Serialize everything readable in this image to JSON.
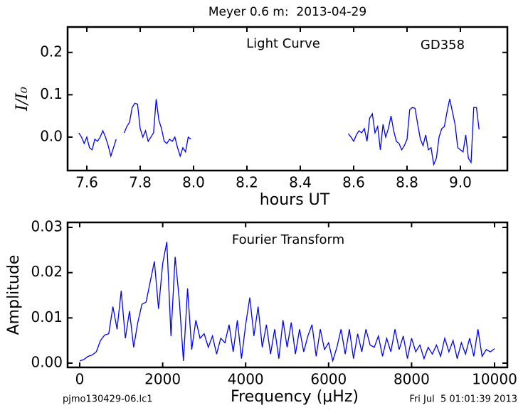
{
  "page": {
    "title": "Meyer 0.6 m:  2013-04-29",
    "footer_left": "pjmo130429-06.lc1",
    "footer_right": "Fri Jul  5 01:01:39 2013"
  },
  "chart_data": [
    {
      "type": "line",
      "xlabel": "hours UT",
      "ylabel": "I/I₀",
      "annotations": [
        "Light Curve",
        "GD358"
      ],
      "xlim": [
        7.528,
        9.176
      ],
      "ylim": [
        -0.079,
        0.26
      ],
      "xticks": [
        7.6,
        7.8,
        {
          "value": 8,
          "label": "8.0"
        },
        8.2,
        8.4,
        8.6,
        8.8,
        {
          "value": 9,
          "label": "9.0"
        }
      ],
      "yticks": [
        {
          "value": 0,
          "label": "0.0"
        },
        0.1,
        0.2
      ],
      "series": [
        {
          "color": "#0000ff",
          "x": [
            7.57,
            7.58,
            7.59,
            7.6,
            7.61,
            7.62,
            7.63,
            7.64,
            7.65,
            7.66,
            7.67,
            7.68,
            7.69,
            7.7,
            7.71,
            7.725,
            7.74,
            7.75,
            7.76,
            7.77,
            7.78,
            7.79,
            7.8,
            7.81,
            7.82,
            7.83,
            7.84,
            7.85,
            7.86,
            7.87,
            7.88,
            7.89,
            7.9,
            7.91,
            7.92,
            7.93,
            7.94,
            7.95,
            7.96,
            7.97,
            7.98,
            7.99,
            8.3,
            8.58,
            8.59,
            8.6,
            8.61,
            8.62,
            8.63,
            8.64,
            8.65,
            8.66,
            8.67,
            8.68,
            8.69,
            8.7,
            8.71,
            8.72,
            8.73,
            8.74,
            8.75,
            8.76,
            8.77,
            8.78,
            8.79,
            8.8,
            8.81,
            8.82,
            8.83,
            8.84,
            8.85,
            8.86,
            8.87,
            8.88,
            8.89,
            8.9,
            8.91,
            8.92,
            8.93,
            8.94,
            8.95,
            8.96,
            8.97,
            8.98,
            8.99,
            9.0,
            9.01,
            9.02,
            9.03,
            9.04,
            9.05,
            9.06,
            9.07
          ],
          "values": [
            0.01,
            0.0,
            -0.015,
            0.0,
            -0.025,
            -0.03,
            -0.005,
            -0.01,
            0.0,
            0.015,
            0.0,
            -0.02,
            -0.045,
            -0.025,
            -0.005,
            null,
            0.01,
            0.025,
            0.035,
            0.07,
            0.08,
            0.078,
            0.02,
            0.0,
            0.015,
            -0.01,
            0.0,
            0.01,
            0.09,
            0.04,
            0.02,
            -0.01,
            -0.015,
            -0.005,
            -0.01,
            0.0,
            -0.025,
            -0.045,
            -0.025,
            -0.035,
            0.0,
            -0.005,
            null,
            0.008,
            0.0,
            -0.01,
            0.005,
            0.015,
            0.01,
            0.02,
            -0.01,
            0.045,
            0.055,
            0.01,
            0.025,
            -0.03,
            0.03,
            0.0,
            0.02,
            0.05,
            0.015,
            -0.01,
            -0.015,
            -0.03,
            -0.02,
            -0.005,
            0.065,
            0.07,
            0.068,
            0.03,
            -0.005,
            -0.02,
            0.005,
            -0.03,
            -0.025,
            -0.065,
            -0.05,
            0.0,
            0.02,
            0.025,
            0.06,
            0.09,
            0.06,
            0.03,
            -0.025,
            -0.03,
            -0.035,
            0.005,
            -0.05,
            -0.06,
            0.07,
            0.07,
            0.018
          ]
        }
      ]
    },
    {
      "type": "line",
      "xlabel": "Frequency (μHz)",
      "ylabel": "Amplitude",
      "annotations": [
        "Fourier Transform"
      ],
      "xlim": [
        -292,
        10309
      ],
      "ylim": [
        -0.00094,
        0.0311
      ],
      "xticks": [
        0,
        2000,
        4000,
        6000,
        8000,
        10000
      ],
      "yticks": [
        {
          "value": 0,
          "label": "0.00"
        },
        0.01,
        0.02,
        0.03
      ],
      "series": [
        {
          "color": "#0000ff",
          "x": [
            0,
            100,
            200,
            300,
            400,
            500,
            600,
            700,
            800,
            900,
            1000,
            1100,
            1200,
            1300,
            1400,
            1500,
            1600,
            1700,
            1800,
            1900,
            2000,
            2100,
            2200,
            2300,
            2400,
            2500,
            2600,
            2700,
            2800,
            2900,
            3000,
            3100,
            3200,
            3300,
            3400,
            3500,
            3600,
            3700,
            3800,
            3900,
            4000,
            4100,
            4200,
            4300,
            4400,
            4500,
            4600,
            4700,
            4800,
            4900,
            5000,
            5100,
            5200,
            5300,
            5400,
            5500,
            5600,
            5700,
            5800,
            5900,
            6000,
            6100,
            6200,
            6300,
            6400,
            6500,
            6600,
            6700,
            6800,
            6900,
            7000,
            7100,
            7200,
            7300,
            7400,
            7500,
            7600,
            7700,
            7800,
            7900,
            8000,
            8100,
            8200,
            8300,
            8400,
            8500,
            8600,
            8700,
            8800,
            8900,
            9000,
            9100,
            9200,
            9300,
            9400,
            9500,
            9600,
            9700,
            9800,
            9900,
            10000
          ],
          "values": [
            0.0005,
            0.0008,
            0.0015,
            0.0018,
            0.0025,
            0.005,
            0.0062,
            0.0065,
            0.0125,
            0.0075,
            0.016,
            0.0055,
            0.0115,
            0.0035,
            0.009,
            0.013,
            0.0135,
            0.018,
            0.0225,
            0.012,
            0.022,
            0.0268,
            0.006,
            0.0235,
            0.014,
            0.0005,
            0.0165,
            0.003,
            0.0095,
            0.0055,
            0.0065,
            0.0035,
            0.006,
            0.002,
            0.0055,
            0.0045,
            0.0085,
            0.0025,
            0.0095,
            0.001,
            0.0085,
            0.0145,
            0.006,
            0.0125,
            0.0035,
            0.0085,
            0.002,
            0.0075,
            0.001,
            0.0095,
            0.0035,
            0.009,
            0.002,
            0.0075,
            0.0025,
            0.006,
            0.0085,
            0.0015,
            0.0075,
            0.003,
            0.0045,
            0.0005,
            0.0035,
            0.0075,
            0.002,
            0.0075,
            0.001,
            0.0065,
            0.0025,
            0.0075,
            0.004,
            0.0035,
            0.006,
            0.0015,
            0.0055,
            0.0025,
            0.0075,
            0.003,
            0.006,
            0.001,
            0.0055,
            0.0025,
            0.004,
            0.001,
            0.0035,
            0.002,
            0.004,
            0.0015,
            0.0055,
            0.0025,
            0.005,
            0.001,
            0.0045,
            0.002,
            0.0055,
            0.0015,
            0.0075,
            0.0015,
            0.003,
            0.0025,
            0.0032
          ]
        }
      ]
    }
  ]
}
